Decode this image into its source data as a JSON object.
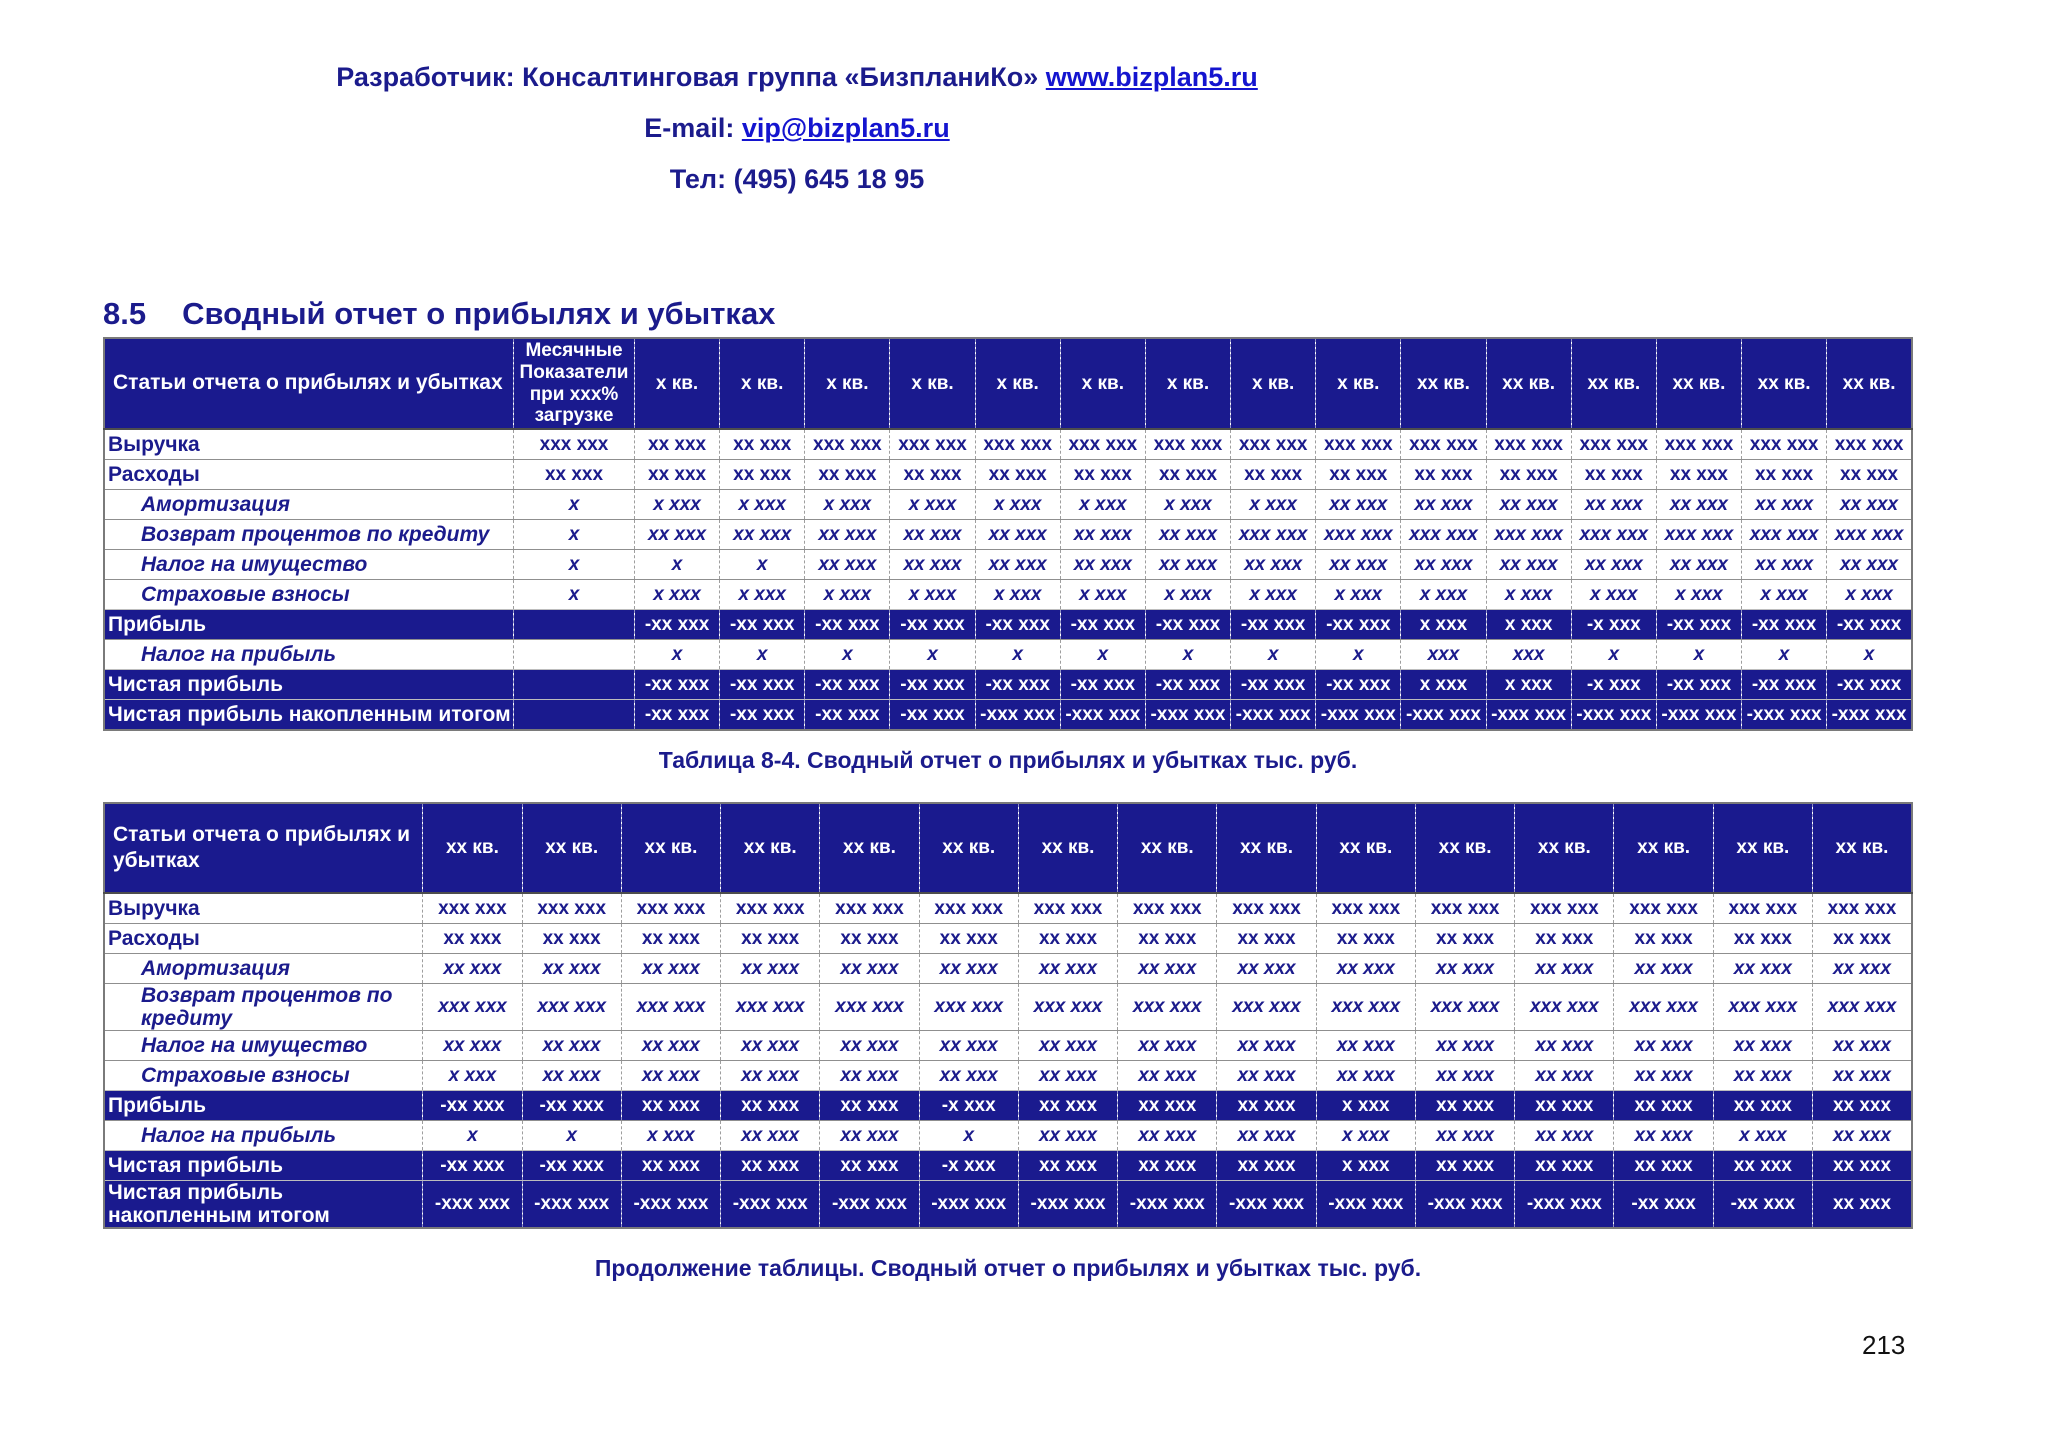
{
  "header": {
    "developer_prefix": "Разработчик: Консалтинговая группа «БизпланиКо» ",
    "developer_link": "www.bizplan5.ru",
    "email_prefix": "E-mail: ",
    "email_link": "vip@bizplan5.ru",
    "phone_line": "Тел: (495) 645 18 95"
  },
  "section": {
    "number": "8.5",
    "title": "Сводный отчет о прибылях и убытках"
  },
  "page_number": "213",
  "table1": {
    "label_header": "Статьи отчета о прибылях и убытках",
    "monthly_header": "Месячные Показатели при xxx% загрузке",
    "quarter_headers": [
      "x кв.",
      "x кв.",
      "x кв.",
      "x кв.",
      "x кв.",
      "x кв.",
      "x кв.",
      "x кв.",
      "x кв.",
      "xx кв.",
      "xx кв.",
      "xx кв.",
      "xx кв.",
      "xx кв.",
      "xx кв."
    ],
    "caption": "Таблица 8-4. Сводный отчет о прибылях и убытках тыс. руб.",
    "rows": [
      {
        "label": "Выручка",
        "style": "bold",
        "monthly": "xxx xxx",
        "values": [
          "xx xxx",
          "xx xxx",
          "xxx xxx",
          "xxx xxx",
          "xxx xxx",
          "xxx xxx",
          "xxx xxx",
          "xxx xxx",
          "xxx xxx",
          "xxx xxx",
          "xxx xxx",
          "xxx xxx",
          "xxx xxx",
          "xxx xxx",
          "xxx xxx"
        ]
      },
      {
        "label": "Расходы",
        "style": "bold",
        "monthly": "xx xxx",
        "values": [
          "xx xxx",
          "xx xxx",
          "xx xxx",
          "xx xxx",
          "xx xxx",
          "xx xxx",
          "xx xxx",
          "xx xxx",
          "xx xxx",
          "xx xxx",
          "xx xxx",
          "xx xxx",
          "xx xxx",
          "xx xxx",
          "xx xxx"
        ]
      },
      {
        "label": "Амортизация",
        "style": "sub",
        "monthly": "x",
        "values": [
          "x xxx",
          "x xxx",
          "x xxx",
          "x xxx",
          "x xxx",
          "x xxx",
          "x xxx",
          "x xxx",
          "xx xxx",
          "xx xxx",
          "xx xxx",
          "xx xxx",
          "xx xxx",
          "xx xxx",
          "xx xxx"
        ]
      },
      {
        "label": "Возврат процентов по кредиту",
        "style": "sub",
        "monthly": "x",
        "values": [
          "xx xxx",
          "xx xxx",
          "xx xxx",
          "xx xxx",
          "xx xxx",
          "xx xxx",
          "xx xxx",
          "xxx xxx",
          "xxx xxx",
          "xxx xxx",
          "xxx xxx",
          "xxx xxx",
          "xxx xxx",
          "xxx xxx",
          "xxx xxx"
        ]
      },
      {
        "label": "Налог на имущество",
        "style": "sub",
        "monthly": "x",
        "values": [
          "x",
          "x",
          "xx xxx",
          "xx xxx",
          "xx xxx",
          "xx xxx",
          "xx xxx",
          "xx xxx",
          "xx xxx",
          "xx xxx",
          "xx xxx",
          "xx xxx",
          "xx xxx",
          "xx xxx",
          "xx xxx"
        ]
      },
      {
        "label": "Страховые взносы",
        "style": "sub",
        "monthly": "x",
        "values": [
          "x xxx",
          "x xxx",
          "x xxx",
          "x xxx",
          "x xxx",
          "x xxx",
          "x xxx",
          "x xxx",
          "x xxx",
          "x xxx",
          "x xxx",
          "x xxx",
          "x xxx",
          "x xxx",
          "x xxx"
        ]
      },
      {
        "label": "Прибыль",
        "style": "navy",
        "monthly": "",
        "values": [
          "-xx xxx",
          "-xx xxx",
          "-xx xxx",
          "-xx xxx",
          "-xx xxx",
          "-xx xxx",
          "-xx xxx",
          "-xx xxx",
          "-xx xxx",
          "x xxx",
          "x xxx",
          "-x xxx",
          "-xx xxx",
          "-xx xxx",
          "-xx xxx"
        ]
      },
      {
        "label": "Налог на прибыль",
        "style": "sub",
        "monthly": "",
        "values": [
          "x",
          "x",
          "x",
          "x",
          "x",
          "x",
          "x",
          "x",
          "x",
          "xxx",
          "xxx",
          "x",
          "x",
          "x",
          "x"
        ]
      },
      {
        "label": "Чистая прибыль",
        "style": "navy",
        "monthly": "",
        "values": [
          "-xx xxx",
          "-xx xxx",
          "-xx xxx",
          "-xx xxx",
          "-xx xxx",
          "-xx xxx",
          "-xx xxx",
          "-xx xxx",
          "-xx xxx",
          "x xxx",
          "x xxx",
          "-x xxx",
          "-xx xxx",
          "-xx xxx",
          "-xx xxx"
        ]
      },
      {
        "label": "Чистая прибыль накопленным итогом",
        "style": "navy",
        "monthly": "",
        "values": [
          "-xx xxx",
          "-xx xxx",
          "-xx xxx",
          "-xx xxx",
          "-xxx xxx",
          "-xxx xxx",
          "-xxx xxx",
          "-xxx xxx",
          "-xxx xxx",
          "-xxx xxx",
          "-xxx xxx",
          "-xxx xxx",
          "-xxx xxx",
          "-xxx xxx",
          "-xxx xxx"
        ]
      }
    ]
  },
  "table2": {
    "label_header": "Статьи отчета о прибылях и убытках",
    "quarter_headers": [
      "xx кв.",
      "xx кв.",
      "xx кв.",
      "xx кв.",
      "xx кв.",
      "xx кв.",
      "xx кв.",
      "xx кв.",
      "xx кв.",
      "xx кв.",
      "xx кв.",
      "xx кв.",
      "xx кв.",
      "xx кв.",
      "xx кв."
    ],
    "caption": "Продолжение таблицы. Сводный отчет о прибылях и убытках тыс. руб.",
    "rows": [
      {
        "label": "Выручка",
        "style": "bold",
        "values": [
          "xxx xxx",
          "xxx xxx",
          "xxx xxx",
          "xxx xxx",
          "xxx xxx",
          "xxx xxx",
          "xxx xxx",
          "xxx xxx",
          "xxx xxx",
          "xxx xxx",
          "xxx xxx",
          "xxx xxx",
          "xxx xxx",
          "xxx xxx",
          "xxx xxx"
        ]
      },
      {
        "label": "Расходы",
        "style": "bold",
        "values": [
          "xx xxx",
          "xx xxx",
          "xx xxx",
          "xx xxx",
          "xx xxx",
          "xx xxx",
          "xx xxx",
          "xx xxx",
          "xx xxx",
          "xx xxx",
          "xx xxx",
          "xx xxx",
          "xx xxx",
          "xx xxx",
          "xx xxx"
        ]
      },
      {
        "label": "Амортизация",
        "style": "sub",
        "values": [
          "xx xxx",
          "xx xxx",
          "xx xxx",
          "xx xxx",
          "xx xxx",
          "xx xxx",
          "xx xxx",
          "xx xxx",
          "xx xxx",
          "xx xxx",
          "xx xxx",
          "xx xxx",
          "xx xxx",
          "xx xxx",
          "xx xxx"
        ]
      },
      {
        "label": "Возврат процентов по кредиту",
        "style": "sub",
        "values": [
          "xxx xxx",
          "xxx xxx",
          "xxx xxx",
          "xxx xxx",
          "xxx xxx",
          "xxx xxx",
          "xxx xxx",
          "xxx xxx",
          "xxx xxx",
          "xxx xxx",
          "xxx xxx",
          "xxx xxx",
          "xxx xxx",
          "xxx xxx",
          "xxx xxx"
        ]
      },
      {
        "label": "Налог на имущество",
        "style": "sub",
        "values": [
          "xx xxx",
          "xx xxx",
          "xx xxx",
          "xx xxx",
          "xx xxx",
          "xx xxx",
          "xx xxx",
          "xx xxx",
          "xx xxx",
          "xx xxx",
          "xx xxx",
          "xx xxx",
          "xx xxx",
          "xx xxx",
          "xx xxx"
        ]
      },
      {
        "label": "Страховые взносы",
        "style": "sub",
        "values": [
          "x xxx",
          "xx xxx",
          "xx xxx",
          "xx xxx",
          "xx xxx",
          "xx xxx",
          "xx xxx",
          "xx xxx",
          "xx xxx",
          "xx xxx",
          "xx xxx",
          "xx xxx",
          "xx xxx",
          "xx xxx",
          "xx xxx"
        ]
      },
      {
        "label": "Прибыль",
        "style": "navy",
        "values": [
          "-xx xxx",
          "-xx xxx",
          "xx xxx",
          "xx xxx",
          "xx xxx",
          "-x xxx",
          "xx xxx",
          "xx xxx",
          "xx xxx",
          "x xxx",
          "xx xxx",
          "xx xxx",
          "xx xxx",
          "xx xxx",
          "xx xxx"
        ]
      },
      {
        "label": "Налог на прибыль",
        "style": "sub",
        "values": [
          "x",
          "x",
          "x xxx",
          "xx xxx",
          "xx xxx",
          "x",
          "xx xxx",
          "xx xxx",
          "xx xxx",
          "x xxx",
          "xx xxx",
          "xx xxx",
          "xx xxx",
          "x xxx",
          "xx xxx"
        ]
      },
      {
        "label": "Чистая прибыль",
        "style": "navy",
        "values": [
          "-xx xxx",
          "-xx xxx",
          "xx xxx",
          "xx xxx",
          "xx xxx",
          "-x xxx",
          "xx xxx",
          "xx xxx",
          "xx xxx",
          "x xxx",
          "xx xxx",
          "xx xxx",
          "xx xxx",
          "xx xxx",
          "xx xxx"
        ]
      },
      {
        "label": "Чистая прибыль накопленным итогом",
        "style": "navy",
        "values": [
          "-xxx xxx",
          "-xxx xxx",
          "-xxx xxx",
          "-xxx xxx",
          "-xxx xxx",
          "-xxx xxx",
          "-xxx xxx",
          "-xxx xxx",
          "-xxx xxx",
          "-xxx xxx",
          "-xxx xxx",
          "-xxx xxx",
          "-xx xxx",
          "-xx xxx",
          "xx xxx"
        ]
      }
    ]
  }
}
